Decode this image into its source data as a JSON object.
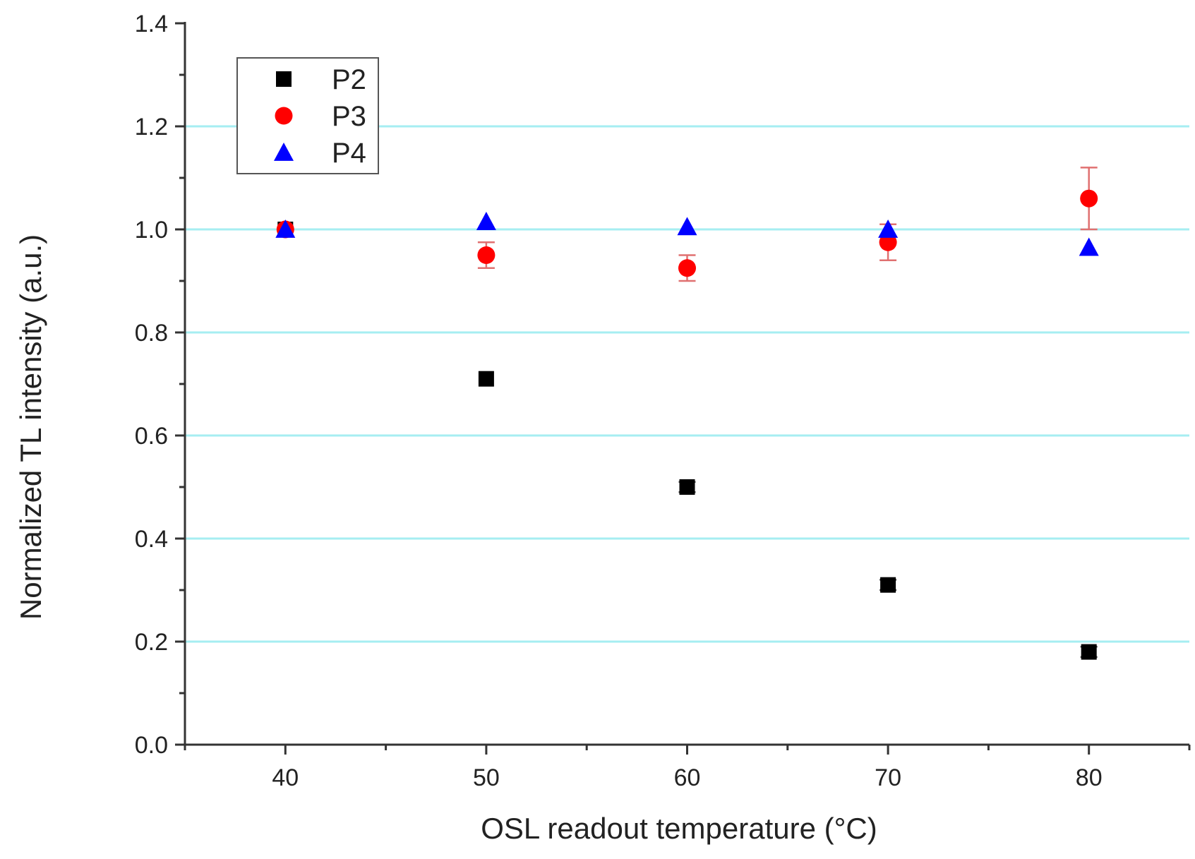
{
  "chart_data": {
    "type": "scatter",
    "title": "",
    "xlabel": "OSL readout temperature (°C)",
    "ylabel": "Normalized TL intensity (a.u.)",
    "xlim": [
      35,
      85
    ],
    "ylim": [
      0.0,
      1.4
    ],
    "x_ticks": [
      40,
      50,
      60,
      70,
      80
    ],
    "x_tick_labels": [
      "40",
      "50",
      "60",
      "70",
      "80"
    ],
    "y_ticks": [
      0.0,
      0.2,
      0.4,
      0.6,
      0.8,
      1.0,
      1.2,
      1.4
    ],
    "y_tick_labels": [
      "0.0",
      "0.2",
      "0.4",
      "0.6",
      "0.8",
      "1.0",
      "1.2",
      "1.4"
    ],
    "grid": "horizontal",
    "grid_color": "#a6eef2",
    "legend_position": "top-left",
    "series": [
      {
        "name": "P2",
        "marker": "square",
        "color": "#000000",
        "x": [
          40,
          50,
          60,
          70,
          80
        ],
        "y": [
          1.0,
          0.71,
          0.5,
          0.31,
          0.18
        ],
        "err": [
          0,
          0,
          0.01,
          0.01,
          0.01
        ]
      },
      {
        "name": "P3",
        "marker": "circle",
        "color": "#ff0000",
        "x": [
          40,
          50,
          60,
          70,
          80
        ],
        "y": [
          1.0,
          0.95,
          0.925,
          0.975,
          1.06
        ],
        "err": [
          0,
          0.025,
          0.025,
          0.035,
          0.06
        ]
      },
      {
        "name": "P4",
        "marker": "triangle",
        "color": "#0000ff",
        "x": [
          40,
          50,
          60,
          70,
          80
        ],
        "y": [
          1.0,
          1.015,
          1.005,
          1.0,
          0.965
        ],
        "err": [
          0,
          0,
          0,
          0,
          0
        ]
      }
    ]
  }
}
